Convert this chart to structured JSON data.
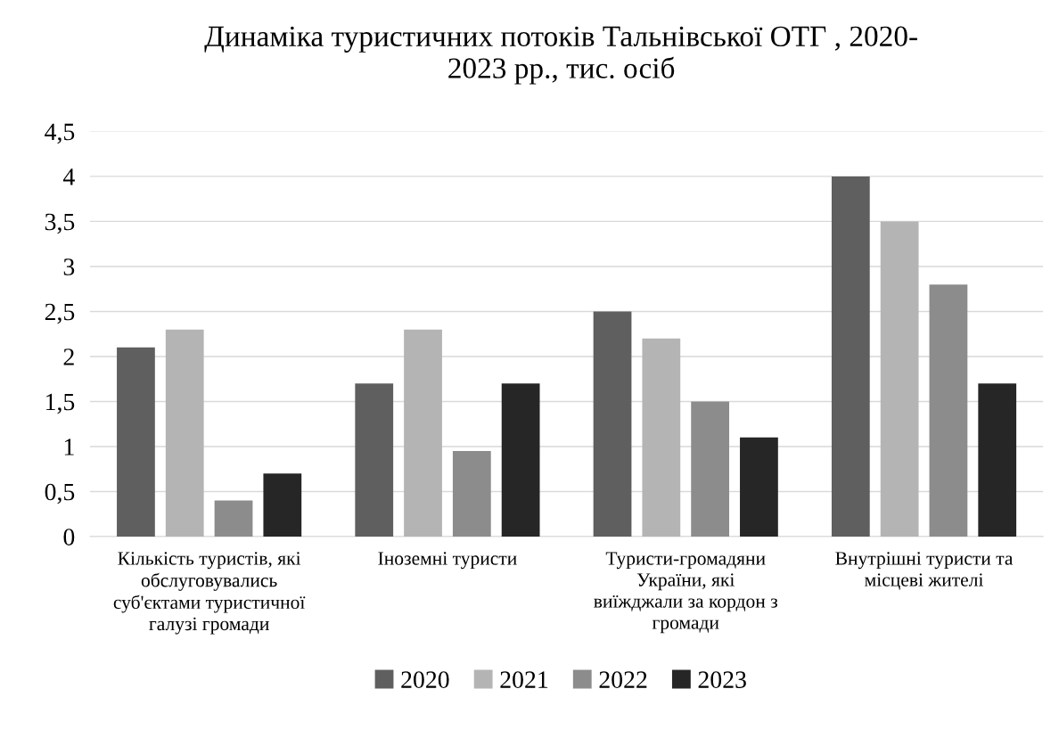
{
  "chart_data": {
    "type": "bar",
    "title": "Динаміка туристичних потоків Тальнівської ОТГ , 2020-\n2023 рр., тис. осіб",
    "categories": [
      "Кількість туристів, які\nобслуговувались\nсуб'єктами туристичної\nгалузі громади",
      "Іноземні туристи",
      "Туристи-громадяни\nУкраїни, які\nвиїжджали за кордон з\nгромади",
      "Внутрішні туристи та\nмісцеві жителі"
    ],
    "series": [
      {
        "name": "2020",
        "color": "#5f5f5f",
        "values": [
          2.1,
          1.7,
          2.5,
          4
        ]
      },
      {
        "name": "2021",
        "color": "#b4b4b4",
        "values": [
          2.3,
          2.3,
          2.2,
          3.5
        ]
      },
      {
        "name": "2022",
        "color": "#8c8c8c",
        "values": [
          0.4,
          0.95,
          1.5,
          2.8
        ]
      },
      {
        "name": "2023",
        "color": "#262626",
        "values": [
          0.7,
          1.7,
          1.1,
          1.7
        ]
      }
    ],
    "ylim": [
      0,
      4.5
    ],
    "yticks": [
      0,
      {
        "value": 0.5,
        "label": "0,5"
      },
      1,
      {
        "value": 1.5,
        "label": "1,5"
      },
      2,
      {
        "value": 2.5,
        "label": "2,5"
      },
      3,
      {
        "value": 3.5,
        "label": "3,5"
      },
      4,
      {
        "value": 4.5,
        "label": "4,5"
      }
    ],
    "grid": "y",
    "legend": "bottom"
  }
}
